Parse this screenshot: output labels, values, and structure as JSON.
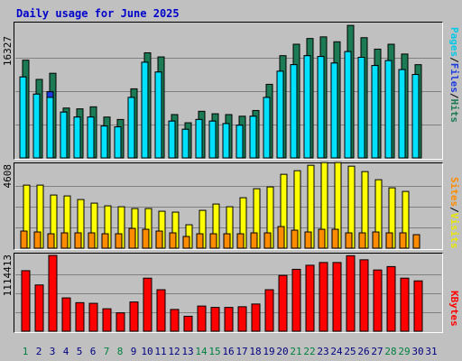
{
  "title": "Daily usage for June 2025",
  "colors": {
    "hits": "#1c7a54",
    "files": "#1b3be0",
    "pages": "#00e0ff",
    "visits": "#ffff00",
    "sites": "#ff8c00",
    "kbytes": "#ff0000",
    "weekend_day": "#008040",
    "weekday_day": "#000080"
  },
  "labels": {
    "hits_max": "16327",
    "visits_max": "4608",
    "kbytes_max": "1114413",
    "pages": "Pages",
    "files": "Files",
    "hits": "Hits",
    "sites": "Sites",
    "visits": "Visits",
    "kbytes": "KBytes"
  },
  "chart_data": {
    "type": "bar",
    "title": "Daily usage for June 2025",
    "categories": [
      "1",
      "2",
      "3",
      "4",
      "5",
      "6",
      "7",
      "8",
      "9",
      "10",
      "11",
      "12",
      "13",
      "14",
      "15",
      "16",
      "17",
      "18",
      "19",
      "20",
      "21",
      "22",
      "23",
      "24",
      "25",
      "26",
      "27",
      "28",
      "29",
      "30",
      "31"
    ],
    "weekend_days": [
      "1",
      "7",
      "8",
      "14",
      "15",
      "21",
      "22",
      "28",
      "29"
    ],
    "panels": [
      {
        "name": "hits-files-pages",
        "ymax_label": "16327",
        "ymax": 16327,
        "series": [
          {
            "name": "Hits",
            "values": [
              11950,
              9600,
              10350,
              6100,
              6000,
              6250,
              5000,
              4700,
              8450,
              12850,
              12350,
              5300,
              4300,
              5700,
              5400,
              5300,
              5100,
              5800,
              9000,
              12500,
              13900,
              14600,
              14800,
              14200,
              16200,
              14700,
              13300,
              13900,
              12700,
              11400,
              0
            ]
          },
          {
            "name": "Files",
            "values": [
              9900,
              7800,
              8100,
              5600,
              5000,
              5000,
              3900,
              3800,
              7400,
              11700,
              10500,
              4500,
              3500,
              4700,
              4500,
              4200,
              4000,
              5100,
              7400,
              10600,
              11400,
              12500,
              12400,
              11600,
              13000,
              12300,
              11300,
              11900,
              10800,
              10200,
              0
            ]
          },
          {
            "name": "Pages",
            "values": [
              9900,
              7800,
              7400,
              5600,
              5000,
              5000,
              3900,
              3800,
              7400,
              11700,
              10500,
              4500,
              3500,
              4700,
              4500,
              4200,
              4000,
              5100,
              7400,
              10600,
              11400,
              12500,
              12400,
              11600,
              13000,
              12300,
              11300,
              11900,
              10800,
              10200,
              0
            ]
          }
        ]
      },
      {
        "name": "visits-sites",
        "ymax_label": "4608",
        "ymax": 4608,
        "series": [
          {
            "name": "Visits",
            "values": [
              3500,
              3500,
              2950,
              2900,
              2700,
              2500,
              2350,
              2300,
              2200,
              2200,
              2050,
              2000,
              1300,
              2100,
              2450,
              2300,
              2800,
              3300,
              3400,
              4100,
              4300,
              4600,
              4750,
              4750,
              4550,
              4250,
              3800,
              3350,
              3150,
              0,
              0
            ]
          },
          {
            "name": "Sites",
            "values": [
              950,
              900,
              800,
              850,
              850,
              850,
              800,
              800,
              1100,
              1050,
              950,
              850,
              650,
              800,
              800,
              800,
              800,
              850,
              850,
              1200,
              1000,
              900,
              1050,
              1050,
              850,
              850,
              900,
              850,
              850,
              750,
              0
            ]
          }
        ]
      },
      {
        "name": "kbytes",
        "ymax_label": "1114413",
        "ymax": 1114413,
        "series": [
          {
            "name": "KBytes",
            "values": [
              890000,
              680000,
              1114413,
              490000,
              420000,
              410000,
              330000,
              270000,
              430000,
              780000,
              610000,
              320000,
              220000,
              370000,
              350000,
              350000,
              360000,
              400000,
              610000,
              820000,
              910000,
              970000,
              1010000,
              1010000,
              1110000,
              1050000,
              900000,
              950000,
              780000,
              740000,
              0
            ]
          }
        ]
      }
    ]
  }
}
